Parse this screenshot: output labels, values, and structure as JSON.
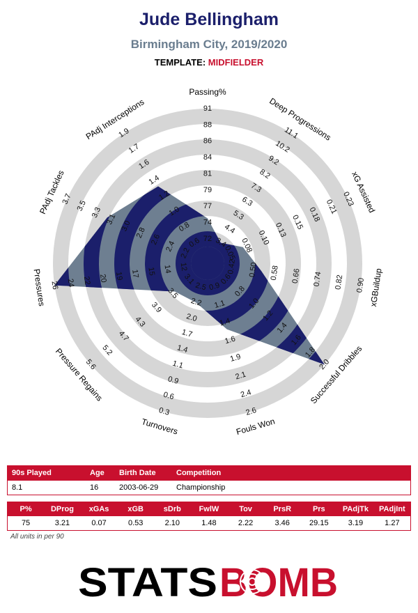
{
  "header": {
    "player": "Jude Bellingham",
    "team_season": "Birmingham City, 2019/2020",
    "template_label": "TEMPLATE:",
    "template_value": "MIDFIELDER"
  },
  "colors": {
    "navy": "#1b1f6b",
    "slate": "#6e7f91",
    "ring_gray": "#d6d6d6",
    "red": "#c8102e"
  },
  "chart_data": {
    "type": "radar",
    "title": "Jude Bellingham",
    "axes": [
      {
        "name": "Passing%",
        "value": 75,
        "min": 72,
        "max": 91,
        "ticks": [
          "72",
          "74",
          "77",
          "79",
          "81",
          "84",
          "86",
          "88",
          "91"
        ]
      },
      {
        "name": "Deep Progressions",
        "value": 3.21,
        "min": 3.4,
        "max": 11.1,
        "ticks": [
          "3.4",
          "4.4",
          "5.3",
          "6.3",
          "7.3",
          "8.2",
          "9.2",
          "10.2",
          "11.1"
        ]
      },
      {
        "name": "xG Assisted",
        "value": 0.07,
        "min": 0.05,
        "max": 0.23,
        "ticks": [
          "0.05",
          "0.08",
          "0.10",
          "0.13",
          "0.15",
          "0.18",
          "0.21",
          "0.23"
        ]
      },
      {
        "name": "xGBuildup",
        "value": 0.53,
        "min": 0.42,
        "max": 0.9,
        "ticks": [
          "0.42",
          "0.50",
          "0.58",
          "0.66",
          "0.74",
          "0.82",
          "0.90"
        ]
      },
      {
        "name": "Successful Dribbles",
        "value": 2.1,
        "min": 0.6,
        "max": 2.0,
        "ticks": [
          "0.6",
          "0.8",
          "1.0",
          "1.2",
          "1.4",
          "1.6",
          "1.8",
          "2.0"
        ]
      },
      {
        "name": "Fouls Won",
        "value": 1.48,
        "min": 0.9,
        "max": 2.6,
        "ticks": [
          "0.9",
          "1.1",
          "1.4",
          "1.6",
          "1.9",
          "2.1",
          "2.4",
          "2.6"
        ]
      },
      {
        "name": "Turnovers",
        "value": 2.22,
        "min": 2.5,
        "max": 0.3,
        "ticks": [
          "2.5",
          "2.2",
          "2.0",
          "1.7",
          "1.4",
          "1.1",
          "0.9",
          "0.6",
          "0.3"
        ]
      },
      {
        "name": "Pressure Regains",
        "value": 3.46,
        "min": 3.1,
        "max": 5.6,
        "ticks": [
          "3.1",
          "3.5",
          "3.9",
          "4.3",
          "4.7",
          "5.2",
          "5.6"
        ]
      },
      {
        "name": "Pressures",
        "value": 29.15,
        "min": 12,
        "max": 26,
        "ticks": [
          "12",
          "14",
          "15",
          "17",
          "19",
          "20",
          "22",
          "24",
          "26"
        ]
      },
      {
        "name": "PAdj Tackles",
        "value": 3.19,
        "min": 2.2,
        "max": 3.7,
        "ticks": [
          "2.2",
          "2.4",
          "2.6",
          "2.8",
          "3.0",
          "3.1",
          "3.3",
          "3.5",
          "3.7"
        ]
      },
      {
        "name": "PAdj Interceptions",
        "value": 1.27,
        "min": 0.6,
        "max": 1.9,
        "ticks": [
          "0.6",
          "0.8",
          "1.0",
          "1.2",
          "1.4",
          "1.6",
          "1.7",
          "1.9"
        ]
      }
    ]
  },
  "info_table": {
    "headers": [
      "90s Played",
      "Age",
      "Birth Date",
      "Competition"
    ],
    "row": [
      "8.1",
      "16",
      "2003-06-29",
      "Championship"
    ]
  },
  "stats_table": {
    "headers": [
      "P%",
      "DProg",
      "xGAs",
      "xGB",
      "sDrb",
      "FwlW",
      "Tov",
      "PrsR",
      "Prs",
      "PAdjTk",
      "PAdjInt"
    ],
    "row": [
      "75",
      "3.21",
      "0.07",
      "0.53",
      "2.10",
      "1.48",
      "2.22",
      "3.46",
      "29.15",
      "3.19",
      "1.27"
    ]
  },
  "footer": {
    "note": "All units in per 90",
    "logo_left": "STATS",
    "logo_right": "BOMB"
  }
}
